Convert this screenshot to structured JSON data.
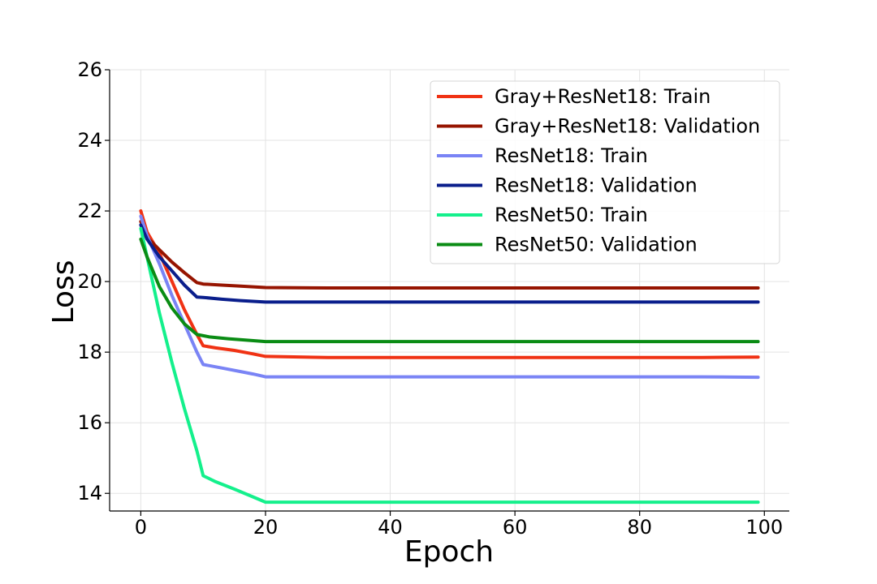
{
  "chart_data": {
    "type": "line",
    "title": "",
    "xlabel": "Epoch",
    "ylabel": "Loss",
    "xlim": [
      -5,
      104
    ],
    "ylim": [
      13.5,
      26
    ],
    "xticks": [
      "0",
      "20",
      "40",
      "60",
      "80",
      "100"
    ],
    "xtick_values": [
      0,
      20,
      40,
      60,
      80,
      100
    ],
    "yticks": [
      "14",
      "16",
      "18",
      "20",
      "22",
      "24",
      "26"
    ],
    "ytick_values": [
      14,
      16,
      18,
      20,
      22,
      24,
      26
    ],
    "grid": true,
    "legend_position": "top-right",
    "series": [
      {
        "name": "Gray+ResNet18: Train",
        "color": "#f03214",
        "points": [
          [
            0,
            22.0
          ],
          [
            1,
            21.4
          ],
          [
            3,
            20.8
          ],
          [
            5,
            20.0
          ],
          [
            7,
            19.2
          ],
          [
            9,
            18.5
          ],
          [
            10,
            18.18
          ],
          [
            12,
            18.12
          ],
          [
            15,
            18.05
          ],
          [
            18,
            17.95
          ],
          [
            20,
            17.88
          ],
          [
            30,
            17.85
          ],
          [
            40,
            17.85
          ],
          [
            50,
            17.85
          ],
          [
            60,
            17.85
          ],
          [
            70,
            17.85
          ],
          [
            80,
            17.85
          ],
          [
            90,
            17.85
          ],
          [
            99,
            17.86
          ]
        ]
      },
      {
        "name": "Gray+ResNet18: Validation",
        "color": "#961400",
        "points": [
          [
            0,
            21.7
          ],
          [
            1,
            21.25
          ],
          [
            3,
            20.9
          ],
          [
            5,
            20.55
          ],
          [
            7,
            20.25
          ],
          [
            9,
            19.97
          ],
          [
            10,
            19.93
          ],
          [
            13,
            19.9
          ],
          [
            16,
            19.87
          ],
          [
            20,
            19.83
          ],
          [
            30,
            19.82
          ],
          [
            40,
            19.82
          ],
          [
            50,
            19.82
          ],
          [
            60,
            19.82
          ],
          [
            70,
            19.82
          ],
          [
            80,
            19.82
          ],
          [
            90,
            19.82
          ],
          [
            99,
            19.82
          ]
        ]
      },
      {
        "name": "ResNet18: Train",
        "color": "#7a84f5",
        "points": [
          [
            0,
            21.85
          ],
          [
            1,
            21.3
          ],
          [
            3,
            20.5
          ],
          [
            5,
            19.6
          ],
          [
            7,
            18.8
          ],
          [
            9,
            18.0
          ],
          [
            10,
            17.65
          ],
          [
            13,
            17.55
          ],
          [
            16,
            17.45
          ],
          [
            18,
            17.38
          ],
          [
            20,
            17.3
          ],
          [
            30,
            17.3
          ],
          [
            40,
            17.3
          ],
          [
            50,
            17.3
          ],
          [
            60,
            17.3
          ],
          [
            70,
            17.3
          ],
          [
            80,
            17.3
          ],
          [
            90,
            17.3
          ],
          [
            99,
            17.29
          ]
        ]
      },
      {
        "name": "ResNet18: Validation",
        "color": "#0a1e8c",
        "points": [
          [
            0,
            21.6
          ],
          [
            1,
            21.2
          ],
          [
            3,
            20.7
          ],
          [
            5,
            20.3
          ],
          [
            7,
            19.9
          ],
          [
            9,
            19.56
          ],
          [
            10,
            19.55
          ],
          [
            13,
            19.5
          ],
          [
            16,
            19.46
          ],
          [
            20,
            19.42
          ],
          [
            30,
            19.42
          ],
          [
            40,
            19.42
          ],
          [
            50,
            19.42
          ],
          [
            60,
            19.42
          ],
          [
            70,
            19.42
          ],
          [
            80,
            19.42
          ],
          [
            90,
            19.42
          ],
          [
            99,
            19.42
          ]
        ]
      },
      {
        "name": "ResNet50: Train",
        "color": "#14f08c",
        "points": [
          [
            0,
            21.5
          ],
          [
            1,
            20.7
          ],
          [
            3,
            19.1
          ],
          [
            5,
            17.7
          ],
          [
            7,
            16.4
          ],
          [
            9,
            15.2
          ],
          [
            10,
            14.5
          ],
          [
            12,
            14.33
          ],
          [
            15,
            14.12
          ],
          [
            18,
            13.9
          ],
          [
            20,
            13.75
          ],
          [
            30,
            13.75
          ],
          [
            40,
            13.75
          ],
          [
            50,
            13.75
          ],
          [
            60,
            13.75
          ],
          [
            70,
            13.75
          ],
          [
            80,
            13.75
          ],
          [
            90,
            13.75
          ],
          [
            99,
            13.75
          ]
        ]
      },
      {
        "name": "ResNet50: Validation",
        "color": "#0a8c14",
        "points": [
          [
            0,
            21.2
          ],
          [
            1,
            20.7
          ],
          [
            3,
            19.85
          ],
          [
            5,
            19.25
          ],
          [
            7,
            18.8
          ],
          [
            9,
            18.5
          ],
          [
            11,
            18.43
          ],
          [
            14,
            18.38
          ],
          [
            17,
            18.34
          ],
          [
            20,
            18.3
          ],
          [
            30,
            18.3
          ],
          [
            40,
            18.3
          ],
          [
            50,
            18.3
          ],
          [
            60,
            18.3
          ],
          [
            70,
            18.3
          ],
          [
            80,
            18.3
          ],
          [
            90,
            18.3
          ],
          [
            99,
            18.3
          ]
        ]
      }
    ]
  }
}
